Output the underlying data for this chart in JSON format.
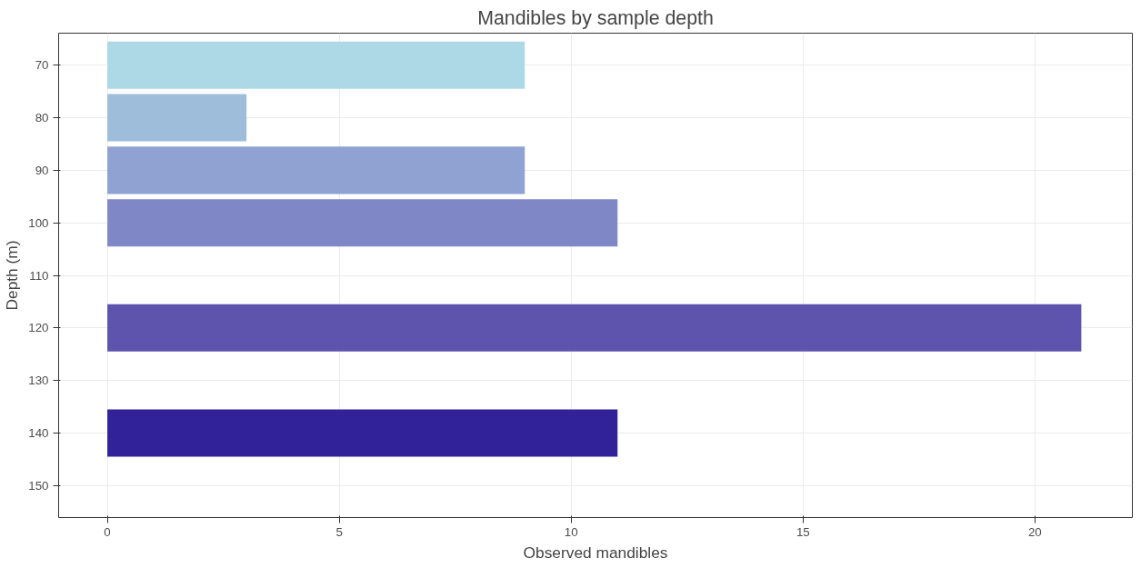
{
  "chart_data": {
    "type": "bar",
    "orientation": "horizontal",
    "title": "Mandibles by sample depth",
    "xlabel": "Observed mandibles",
    "ylabel": "Depth (m)",
    "x": [
      70,
      80,
      90,
      100,
      120,
      140
    ],
    "values": [
      9,
      3,
      9,
      11,
      21,
      11
    ],
    "colors": [
      "#add8e6",
      "#9ebddb",
      "#8fa2d1",
      "#7f87c6",
      "#5e54ad",
      "#31229a"
    ],
    "xlim": [
      -1.05,
      22.1
    ],
    "xticks": [
      0,
      5,
      10,
      15,
      20
    ],
    "ylim": [
      156.1,
      63.9
    ],
    "yticks": [
      70,
      80,
      90,
      100,
      110,
      120,
      130,
      140,
      150
    ],
    "grid": true
  }
}
